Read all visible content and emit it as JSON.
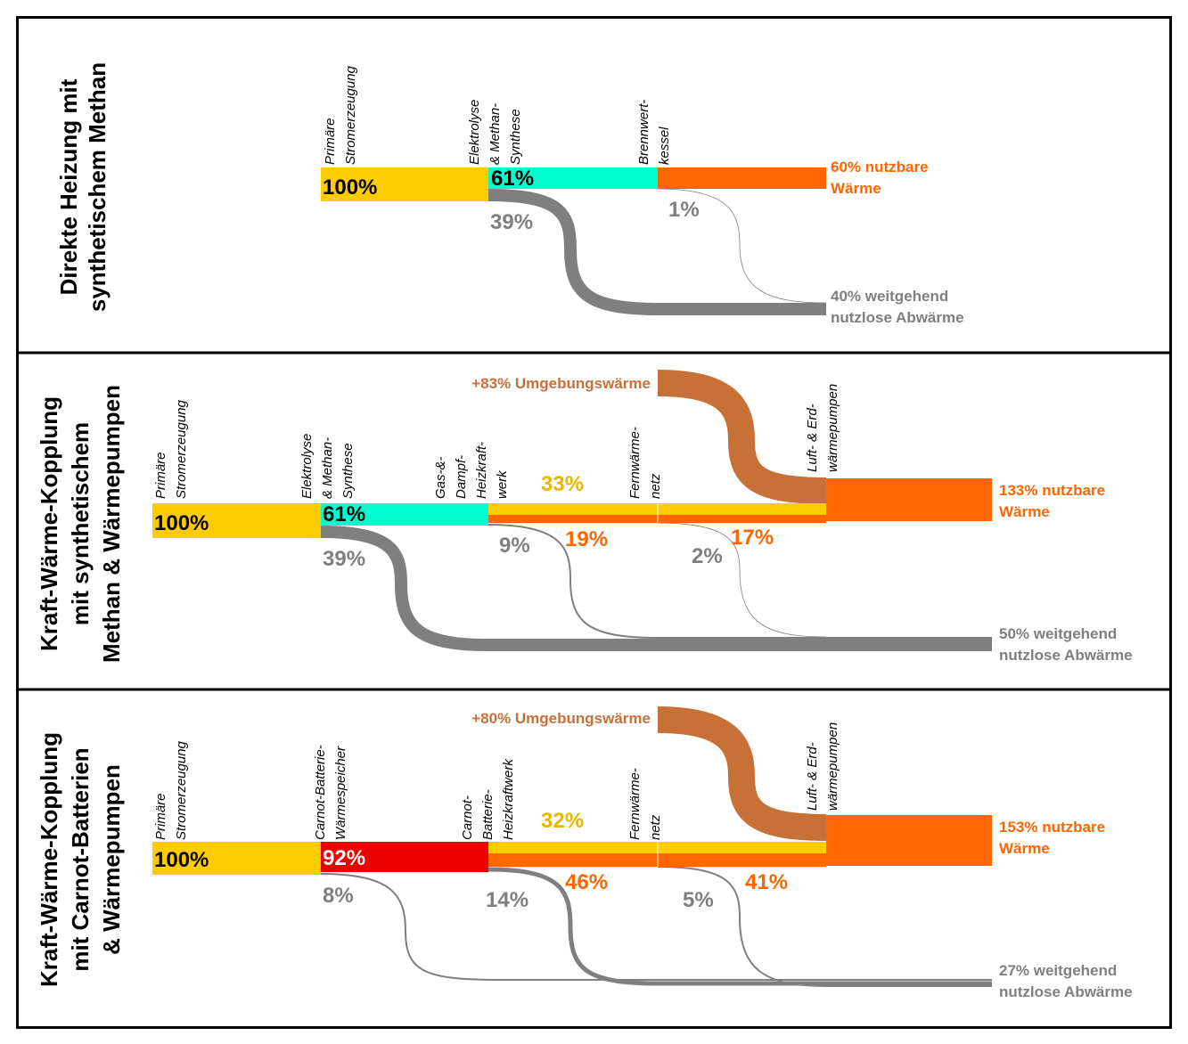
{
  "panels": [
    {
      "title": [
        "Direkte Heizung mit",
        "synthetischem Methan"
      ],
      "stages": [
        [
          "Primäre",
          "Stromerzeugung"
        ],
        [
          "Elektrolyse",
          "& Methan-",
          "Synthese"
        ],
        [
          "Brennwert-",
          "kessel"
        ]
      ],
      "flow_labels": [
        "100%",
        "61%",
        "39%",
        "1%"
      ],
      "useful_heat": [
        "60% nutzbare",
        "Wärme"
      ],
      "waste_heat": [
        "40% weitgehend",
        "nutzlose Abwärme"
      ]
    },
    {
      "title": [
        "Kraft-Wärme-Kopplung",
        "mit synthetischem",
        "Methan & Wärmepumpen"
      ],
      "stages": [
        [
          "Primäre",
          "Stromerzeugung"
        ],
        [
          "Elektrolyse",
          "& Methan-",
          "Synthese"
        ],
        [
          "Gas-&-",
          "Dampf-",
          "Heizkraft-",
          "werk"
        ],
        [
          "Fernwärme-",
          "netz"
        ],
        [
          "Luft- & Erd-",
          "wärmepumpen"
        ]
      ],
      "ambient_heat": "+83% Umgebungswärme",
      "flow_labels": [
        "100%",
        "61%",
        "39%",
        "33%",
        "19%",
        "9%",
        "17%",
        "2%"
      ],
      "useful_heat": [
        "133% nutzbare",
        "Wärme"
      ],
      "waste_heat": [
        "50% weitgehend",
        "nutzlose Abwärme"
      ]
    },
    {
      "title": [
        "Kraft-Wärme-Kopplung",
        "mit Carnot-Batterien",
        "& Wärmepumpen"
      ],
      "stages": [
        [
          "Primäre",
          "Stromerzeugung"
        ],
        [
          "Carnot-Batterie-",
          "Wärmespeicher"
        ],
        [
          "Carnot-",
          "Batterie-",
          "Heizkraftwerk"
        ],
        [
          "Fernwärme-",
          "netz"
        ],
        [
          "Luft- & Erd-",
          "wärmepumpen"
        ]
      ],
      "ambient_heat": "+80% Umgebungswärme",
      "flow_labels": [
        "100%",
        "92%",
        "8%",
        "32%",
        "46%",
        "14%",
        "41%",
        "5%"
      ],
      "useful_heat": [
        "153% nutzbare",
        "Wärme"
      ],
      "waste_heat": [
        "27% weitgehend",
        "nutzlose Abwärme"
      ]
    }
  ]
}
